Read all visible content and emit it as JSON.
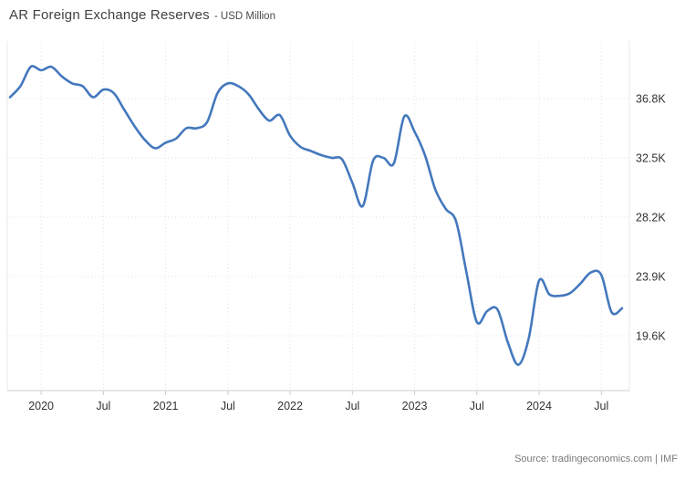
{
  "header": {
    "title": "AR Foreign Exchange Reserves",
    "subtitle": "- USD Million"
  },
  "footer": {
    "source": "Source: tradingeconomics.com | IMF"
  },
  "colors": {
    "line": "#4478bd",
    "grid": "#e2e2e2",
    "axis": "#cccccc",
    "tick_text": "#333333"
  },
  "chart_data": {
    "type": "line",
    "title": "AR Foreign Exchange Reserves",
    "subtitle": "USD Million",
    "unit": "USD Million",
    "legend": "none",
    "grid": "dotted",
    "y_axis_side": "right",
    "line_color": "#4478bd",
    "y_ticks": [
      "36.8K",
      "32.5K",
      "28.2K",
      "23.9K",
      "19.6K"
    ],
    "y_tick_values": [
      36800,
      32500,
      28200,
      23900,
      19600
    ],
    "ylim": [
      15500,
      41000
    ],
    "x_ticks": [
      "2020",
      "Jul",
      "2021",
      "Jul",
      "2022",
      "Jul",
      "2023",
      "Jul",
      "2024",
      "Jul"
    ],
    "months": [
      "2019-10",
      "2019-11",
      "2019-12",
      "2020-01",
      "2020-02",
      "2020-03",
      "2020-04",
      "2020-05",
      "2020-06",
      "2020-07",
      "2020-08",
      "2020-09",
      "2020-10",
      "2020-11",
      "2020-12",
      "2021-01",
      "2021-02",
      "2021-03",
      "2021-04",
      "2021-05",
      "2021-06",
      "2021-07",
      "2021-08",
      "2021-09",
      "2021-10",
      "2021-11",
      "2021-12",
      "2022-01",
      "2022-02",
      "2022-03",
      "2022-04",
      "2022-05",
      "2022-06",
      "2022-07",
      "2022-08",
      "2022-09",
      "2022-10",
      "2022-11",
      "2022-12",
      "2023-01",
      "2023-02",
      "2023-03",
      "2023-04",
      "2023-05",
      "2023-06",
      "2023-07",
      "2023-08",
      "2023-09",
      "2023-10",
      "2023-11",
      "2023-12",
      "2024-01",
      "2024-02",
      "2024-03",
      "2024-04",
      "2024-05",
      "2024-06",
      "2024-07",
      "2024-08",
      "2024-09"
    ],
    "values": [
      36900,
      37700,
      39100,
      38850,
      39100,
      38400,
      37900,
      37700,
      36900,
      37450,
      37200,
      36000,
      34800,
      33800,
      33200,
      33600,
      33900,
      34650,
      34650,
      35100,
      37200,
      37900,
      37700,
      37100,
      36000,
      35200,
      35600,
      34100,
      33300,
      33000,
      32700,
      32500,
      32400,
      30700,
      29000,
      32300,
      32500,
      32100,
      35500,
      34400,
      32700,
      30200,
      28800,
      27900,
      24200,
      20600,
      21400,
      21500,
      19100,
      17500,
      19400,
      23600,
      22600,
      22500,
      22700,
      23400,
      24200,
      24000,
      21300,
      21600
    ]
  }
}
